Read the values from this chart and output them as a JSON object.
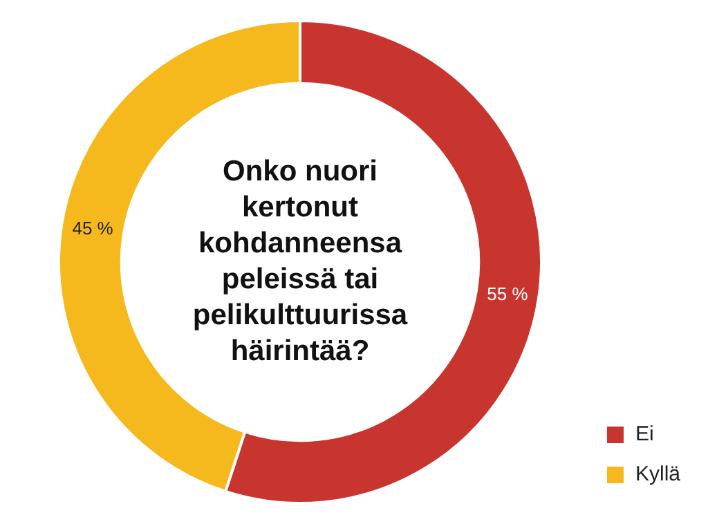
{
  "chart_data": {
    "type": "donut",
    "title": "Onko nuori kertonut kohdanneensa peleissä tai pelikulttuurissa häirintää?",
    "categories": [
      "Ei",
      "Kyllä"
    ],
    "values": [
      55,
      45
    ],
    "colors": [
      "#c8352f",
      "#f5b91d"
    ],
    "value_labels": [
      "55 %",
      "45 %"
    ],
    "legend": "bottom right"
  }
}
